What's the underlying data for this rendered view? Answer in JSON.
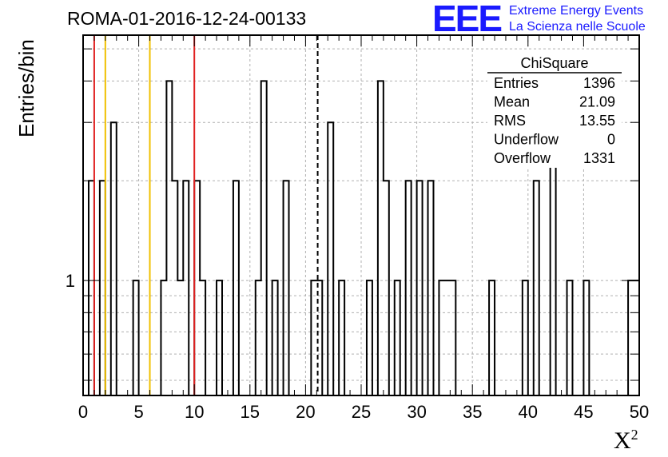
{
  "header": {
    "title": "ROMA-01-2016-12-24-00133",
    "logo_text": "EEE",
    "logo_line1": "Extreme Energy Events",
    "logo_line2": "La Scienza nelle Scuole"
  },
  "chart_data": {
    "type": "bar",
    "ylabel": "Entries/bin",
    "xlabel_base": "X",
    "xlabel_sup": "2",
    "xlim": [
      0,
      50
    ],
    "x_ticks": [
      0,
      5,
      10,
      15,
      20,
      25,
      30,
      35,
      40,
      45,
      50
    ],
    "y_scale": "log",
    "ylim": [
      0.45,
      5.5
    ],
    "y_tick_labels": [
      {
        "value": 1,
        "label": "1"
      }
    ],
    "bin_width": 0.5,
    "bins": [
      {
        "x": 0.0,
        "y": 0
      },
      {
        "x": 0.5,
        "y": 2
      },
      {
        "x": 1.0,
        "y": 0
      },
      {
        "x": 1.5,
        "y": 2
      },
      {
        "x": 2.0,
        "y": 0
      },
      {
        "x": 2.5,
        "y": 3
      },
      {
        "x": 3.0,
        "y": 0
      },
      {
        "x": 4.5,
        "y": 1
      },
      {
        "x": 5.0,
        "y": 0
      },
      {
        "x": 7.0,
        "y": 1
      },
      {
        "x": 7.5,
        "y": 4
      },
      {
        "x": 8.0,
        "y": 2
      },
      {
        "x": 8.5,
        "y": 1
      },
      {
        "x": 9.0,
        "y": 2
      },
      {
        "x": 9.5,
        "y": 0
      },
      {
        "x": 10.0,
        "y": 2
      },
      {
        "x": 10.5,
        "y": 1
      },
      {
        "x": 11.0,
        "y": 0
      },
      {
        "x": 12.0,
        "y": 1
      },
      {
        "x": 12.5,
        "y": 0
      },
      {
        "x": 13.5,
        "y": 2
      },
      {
        "x": 14.0,
        "y": 0
      },
      {
        "x": 15.5,
        "y": 1
      },
      {
        "x": 16.0,
        "y": 4
      },
      {
        "x": 16.5,
        "y": 0
      },
      {
        "x": 17.0,
        "y": 1
      },
      {
        "x": 17.5,
        "y": 0
      },
      {
        "x": 18.0,
        "y": 2
      },
      {
        "x": 18.5,
        "y": 0
      },
      {
        "x": 20.5,
        "y": 1
      },
      {
        "x": 21.0,
        "y": 1
      },
      {
        "x": 21.5,
        "y": 0
      },
      {
        "x": 22.0,
        "y": 3
      },
      {
        "x": 22.5,
        "y": 0
      },
      {
        "x": 23.0,
        "y": 1
      },
      {
        "x": 23.5,
        "y": 0
      },
      {
        "x": 25.5,
        "y": 1
      },
      {
        "x": 26.0,
        "y": 0
      },
      {
        "x": 26.5,
        "y": 4
      },
      {
        "x": 27.0,
        "y": 2
      },
      {
        "x": 27.5,
        "y": 0
      },
      {
        "x": 28.0,
        "y": 1
      },
      {
        "x": 28.5,
        "y": 0
      },
      {
        "x": 29.0,
        "y": 2
      },
      {
        "x": 29.5,
        "y": 0
      },
      {
        "x": 30.0,
        "y": 2
      },
      {
        "x": 30.5,
        "y": 0
      },
      {
        "x": 31.0,
        "y": 2
      },
      {
        "x": 31.5,
        "y": 0
      },
      {
        "x": 32.0,
        "y": 1
      },
      {
        "x": 32.5,
        "y": 1
      },
      {
        "x": 33.0,
        "y": 1
      },
      {
        "x": 33.5,
        "y": 0
      },
      {
        "x": 36.5,
        "y": 1
      },
      {
        "x": 37.0,
        "y": 0
      },
      {
        "x": 39.5,
        "y": 1
      },
      {
        "x": 40.0,
        "y": 0
      },
      {
        "x": 40.5,
        "y": 2
      },
      {
        "x": 41.0,
        "y": 0
      },
      {
        "x": 42.0,
        "y": 3
      },
      {
        "x": 42.5,
        "y": 0
      },
      {
        "x": 43.5,
        "y": 1
      },
      {
        "x": 44.0,
        "y": 0
      },
      {
        "x": 45.0,
        "y": 1
      },
      {
        "x": 45.5,
        "y": 0
      },
      {
        "x": 49.0,
        "y": 1
      }
    ],
    "vertical_lines": [
      {
        "x": 1.0,
        "color": "#e02020",
        "style": "solid"
      },
      {
        "x": 2.0,
        "color": "#f0c000",
        "style": "solid"
      },
      {
        "x": 6.0,
        "color": "#f0c000",
        "style": "solid"
      },
      {
        "x": 10.0,
        "color": "#e02020",
        "style": "solid"
      },
      {
        "x": 21.09,
        "color": "#000000",
        "style": "dashed"
      }
    ],
    "grid": true,
    "stats_box": {
      "title": "ChiSquare",
      "placement": "top-right",
      "rows": [
        {
          "label": "Entries",
          "value": "1396"
        },
        {
          "label": "Mean",
          "value": "21.09"
        },
        {
          "label": "RMS",
          "value": "13.55"
        },
        {
          "label": "Underflow",
          "value": "0"
        },
        {
          "label": "Overflow",
          "value": "1331"
        }
      ]
    }
  }
}
